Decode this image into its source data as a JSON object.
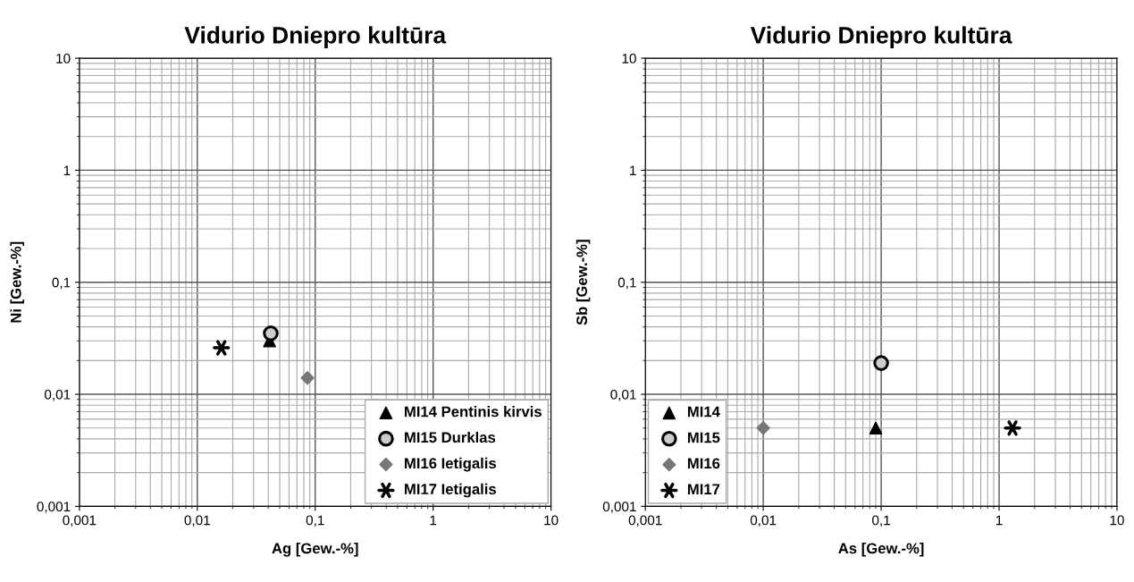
{
  "chart_data": [
    {
      "type": "scatter",
      "title": "Vidurio Dniepro kultūra",
      "xlabel": "Ag [Gew.-%]",
      "ylabel": "Ni [Gew.-%]",
      "log": "xy",
      "grid": true,
      "legend": "bottom right",
      "xlim": [
        0.001,
        10
      ],
      "ylim": [
        0.001,
        10
      ],
      "xticks": [
        {
          "value": 0.001,
          "label": "0,001"
        },
        {
          "value": 0.01,
          "label": "0,01"
        },
        {
          "value": 0.1,
          "label": "0,1"
        },
        1,
        10
      ],
      "yticks": [
        {
          "value": 0.001,
          "label": "0,001"
        },
        {
          "value": 0.01,
          "label": "0,01"
        },
        {
          "value": 0.1,
          "label": "0,1"
        },
        1,
        10
      ],
      "series": [
        {
          "name": "MI14 Pentinis kirvis",
          "color": "#000000",
          "marker": "triangle",
          "x": [
            0.041
          ],
          "values": [
            0.03
          ]
        },
        {
          "name": "MI15 Durklas",
          "color": "#cccccc",
          "marker": "circle",
          "x": [
            0.042
          ],
          "values": [
            0.035
          ]
        },
        {
          "name": "MI16 Ietigalis",
          "color": "#777777",
          "marker": "diamond",
          "x": [
            0.086
          ],
          "values": [
            0.014
          ]
        },
        {
          "name": "MI17 Ietigalis",
          "color": "#000000",
          "marker": "cross",
          "x": [
            0.016
          ],
          "values": [
            0.026
          ]
        }
      ]
    },
    {
      "type": "scatter",
      "title": "Vidurio Dniepro kultūra",
      "xlabel": "As [Gew.-%]",
      "ylabel": "Sb [Gew.-%]",
      "log": "xy",
      "grid": true,
      "legend": "bottom left",
      "xlim": [
        0.001,
        10
      ],
      "ylim": [
        0.001,
        10
      ],
      "xticks": [
        {
          "value": 0.001,
          "label": "0,001"
        },
        {
          "value": 0.01,
          "label": "0,01"
        },
        {
          "value": 0.1,
          "label": "0,1"
        },
        1,
        10
      ],
      "yticks": [
        {
          "value": 0.001,
          "label": "0,001"
        },
        {
          "value": 0.01,
          "label": "0,01"
        },
        {
          "value": 0.1,
          "label": "0,1"
        },
        1,
        10
      ],
      "series": [
        {
          "name": "MI14",
          "color": "#000000",
          "marker": "triangle",
          "x": [
            0.09
          ],
          "values": [
            0.005
          ]
        },
        {
          "name": "MI15",
          "color": "#cccccc",
          "marker": "circle",
          "x": [
            0.1
          ],
          "values": [
            0.019
          ]
        },
        {
          "name": "MI16",
          "color": "#777777",
          "marker": "diamond",
          "x": [
            0.01
          ],
          "values": [
            0.005
          ]
        },
        {
          "name": "MI17",
          "color": "#000000",
          "marker": "cross",
          "x": [
            1.3
          ],
          "values": [
            0.005
          ]
        }
      ]
    }
  ]
}
